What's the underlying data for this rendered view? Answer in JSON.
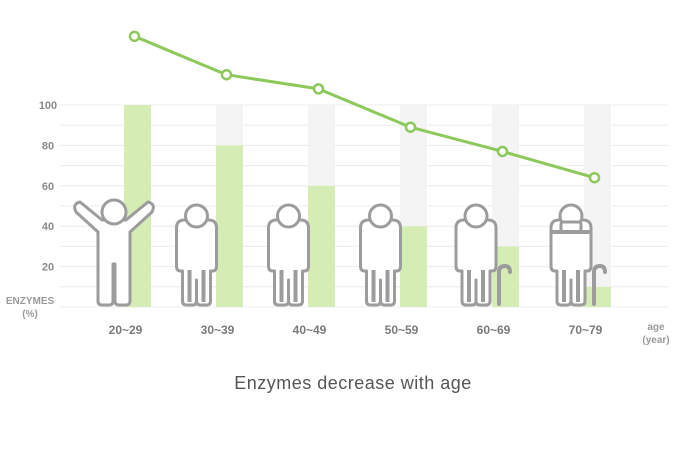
{
  "chart_data": {
    "type": "bar",
    "title": "",
    "caption": "Enzymes decrease with age",
    "ylabel_line1": "ENZYMES",
    "ylabel_line2": "(%)",
    "xlabel_line1": "age",
    "xlabel_line2": "(year)",
    "categories": [
      "20~29",
      "30~39",
      "40~49",
      "50~59",
      "60~69",
      "70~79"
    ],
    "values": [
      100,
      80,
      60,
      40,
      30,
      10
    ],
    "line_values": [
      134,
      115,
      108,
      89,
      77,
      64
    ],
    "ylim": [
      0,
      100
    ],
    "yticks": [
      20,
      40,
      60,
      80,
      100
    ],
    "grid": true,
    "colors": {
      "bar": "#d5ecb4",
      "bar_background": "#f4f4f4",
      "line": "#8cc85a",
      "figure_stroke": "#9c9c9c",
      "grid": "#ececec"
    },
    "figures": [
      "person-arms-raised-icon",
      "person-icon",
      "person-icon",
      "person-icon",
      "elder-with-cane-icon",
      "elder-with-hat-and-cane-icon"
    ]
  }
}
